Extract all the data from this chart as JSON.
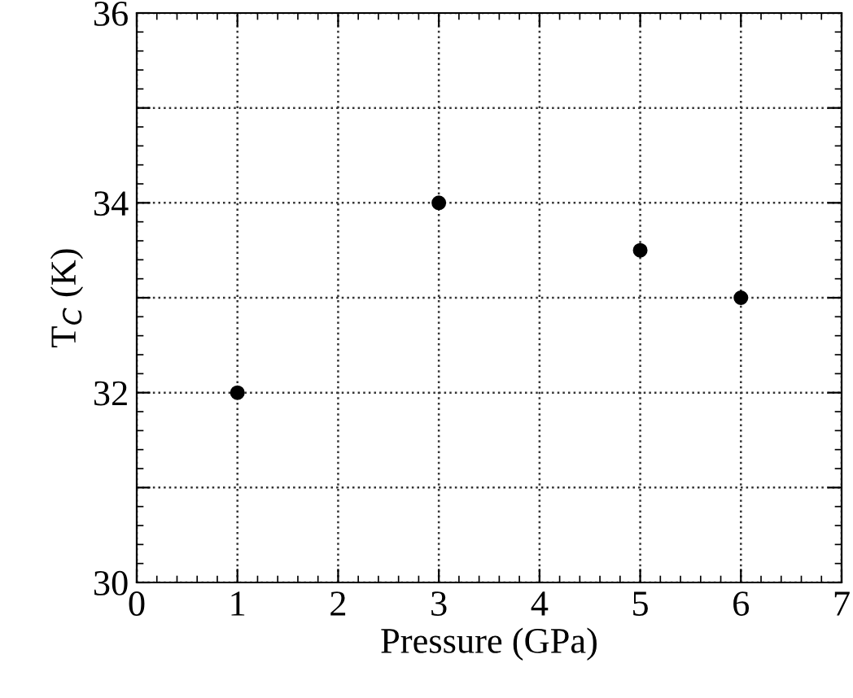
{
  "chart_data": {
    "type": "scatter",
    "xlabel": "Pressure (GPa)",
    "ylabel": "T$_{C}$ (K)",
    "x": [
      1,
      3,
      5,
      6
    ],
    "series": [
      {
        "color": "#000000",
        "values": [
          32,
          34,
          33.5,
          33
        ]
      }
    ],
    "xlim": [
      0,
      7
    ],
    "xticks": [
      0,
      1,
      2,
      3,
      4,
      5,
      6,
      7
    ],
    "ylim": [
      30,
      36
    ],
    "yticks": [
      30,
      {
        "value": 31,
        "label": null
      },
      32,
      {
        "value": 33,
        "label": null
      },
      34,
      {
        "value": 35,
        "label": null
      },
      36
    ],
    "grid": true,
    "marker": "circle",
    "legend": false
  }
}
